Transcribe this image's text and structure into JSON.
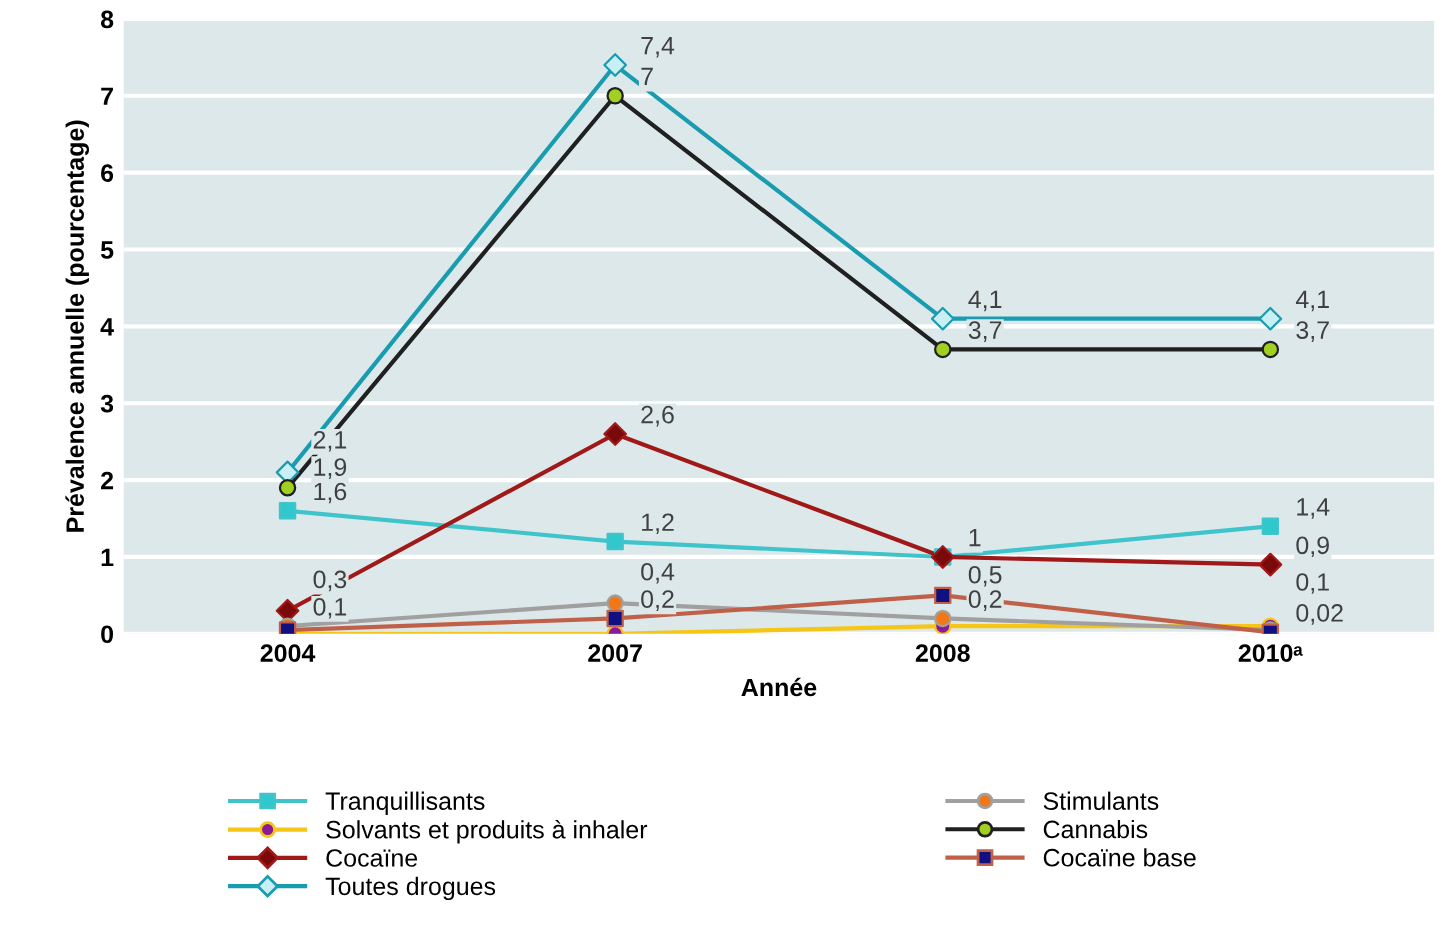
{
  "chart_data": {
    "type": "line",
    "xlabel": "Année",
    "ylabel": "Prévalence annuelle (pourcentage)",
    "categories": [
      "2004",
      "2007",
      "2008",
      "2010ᵃ"
    ],
    "ylim": [
      0,
      8
    ],
    "yticks": [
      0,
      1,
      2,
      3,
      4,
      5,
      6,
      7,
      8
    ],
    "grid": "y",
    "legend": "bottom",
    "series": [
      {
        "name": "Tranquillisants",
        "color": "#40c4cc",
        "colors": [
          "#30c8cc",
          "#30c8cc",
          "#30c8cc",
          "#30c8cc"
        ],
        "marker": "square",
        "values": [
          1.6,
          1.2,
          1.0,
          1.4
        ],
        "value_labels": [
          "1,6",
          "1,2",
          null,
          "1,4"
        ]
      },
      {
        "name": "Solvants et produits à inhaler",
        "color": "#f5c518",
        "colors": [
          "#8b1a9a",
          "#8b1a9a",
          "#8b1a9a",
          "#8b1a9a"
        ],
        "marker": "circle",
        "values": [
          0.0,
          0.0,
          0.1,
          0.1
        ],
        "value_labels": [
          null,
          null,
          null,
          "0,1"
        ]
      },
      {
        "name": "Cocaïne",
        "color": "#a01818",
        "colors": [
          "#7a0a0a",
          "#7a0a0a",
          "#7a0a0a",
          "#7a0a0a"
        ],
        "marker": "diamond",
        "values": [
          0.3,
          2.6,
          1.0,
          0.9
        ],
        "value_labels": [
          "0,3",
          "2,6",
          "1",
          "0,9"
        ]
      },
      {
        "name": "Toutes drogues",
        "color": "#1a9cb0",
        "colors": [
          "#c8f0f4",
          "#c8f0f4",
          "#c8f0f4",
          "#c8f0f4"
        ],
        "marker": "diamond",
        "values": [
          2.1,
          7.4,
          4.1,
          4.1
        ],
        "value_labels": [
          "2,1",
          "7,4",
          "4,1",
          "4,1"
        ]
      },
      {
        "name": "Stimulants",
        "color": "#a0a0a0",
        "colors": [
          "#f07818",
          "#f07818",
          "#f07818",
          "#f07818"
        ],
        "marker": "circle",
        "values": [
          0.1,
          0.4,
          0.2,
          0.05
        ],
        "value_labels": [
          "0,1",
          "0,4",
          "0,2",
          null
        ]
      },
      {
        "name": "Cannabis",
        "color": "#202020",
        "colors": [
          "#a0d020",
          "#a0d020",
          "#a0d020",
          "#a0d020"
        ],
        "marker": "circle",
        "values": [
          1.9,
          7,
          3.7,
          3.7
        ],
        "value_labels": [
          "1,9",
          "7",
          "3,7",
          "3,7"
        ]
      },
      {
        "name": "Cocaïne base",
        "color": "#c06048",
        "colors": [
          "#101080",
          "#101080",
          "#101080",
          "#101080"
        ],
        "marker": "square",
        "values": [
          0.05,
          0.2,
          0.5,
          0.02
        ],
        "value_labels": [
          null,
          "0,2",
          "0,5",
          "0,02"
        ]
      }
    ]
  }
}
